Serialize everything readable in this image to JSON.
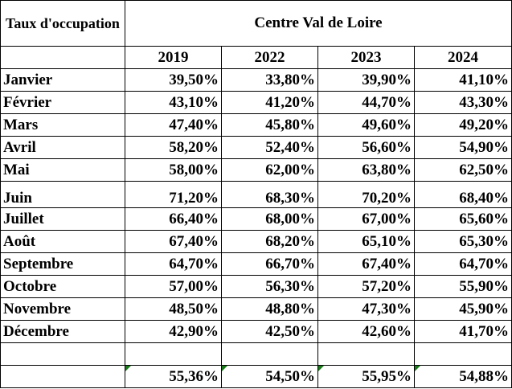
{
  "header": {
    "label": "Taux d'occupation",
    "region": "Centre Val de Loire"
  },
  "table": {
    "columns": [
      "2019",
      "2022",
      "2023",
      "2024"
    ],
    "rows": [
      [
        "Janvier",
        "39,50%",
        "33,80%",
        "39,90%",
        "41,10%"
      ],
      [
        "Février",
        "43,10%",
        "41,20%",
        "44,70%",
        "43,30%"
      ],
      [
        "Mars",
        "47,40%",
        "45,80%",
        "49,60%",
        "49,20%"
      ],
      [
        "Avril",
        "58,20%",
        "52,40%",
        "56,60%",
        "54,90%"
      ],
      [
        "Mai",
        "58,00%",
        "62,00%",
        "63,80%",
        "62,50%"
      ],
      [
        "Juin",
        "71,20%",
        "68,30%",
        "70,20%",
        "68,40%"
      ],
      [
        "Juillet",
        "66,40%",
        "68,00%",
        "67,00%",
        "65,60%"
      ],
      [
        "Août",
        "67,40%",
        "68,20%",
        "65,10%",
        "65,30%"
      ],
      [
        "Septembre",
        "64,70%",
        "66,70%",
        "67,40%",
        "64,70%"
      ],
      [
        "Octobre",
        "57,00%",
        "56,30%",
        "57,20%",
        "55,90%"
      ],
      [
        "Novembre",
        "48,50%",
        "48,80%",
        "47,30%",
        "45,90%"
      ],
      [
        "Décembre",
        "42,90%",
        "42,50%",
        "42,60%",
        "41,70%"
      ]
    ],
    "totals": [
      "55,36%",
      "54,50%",
      "55,95%",
      "54,88%"
    ]
  }
}
